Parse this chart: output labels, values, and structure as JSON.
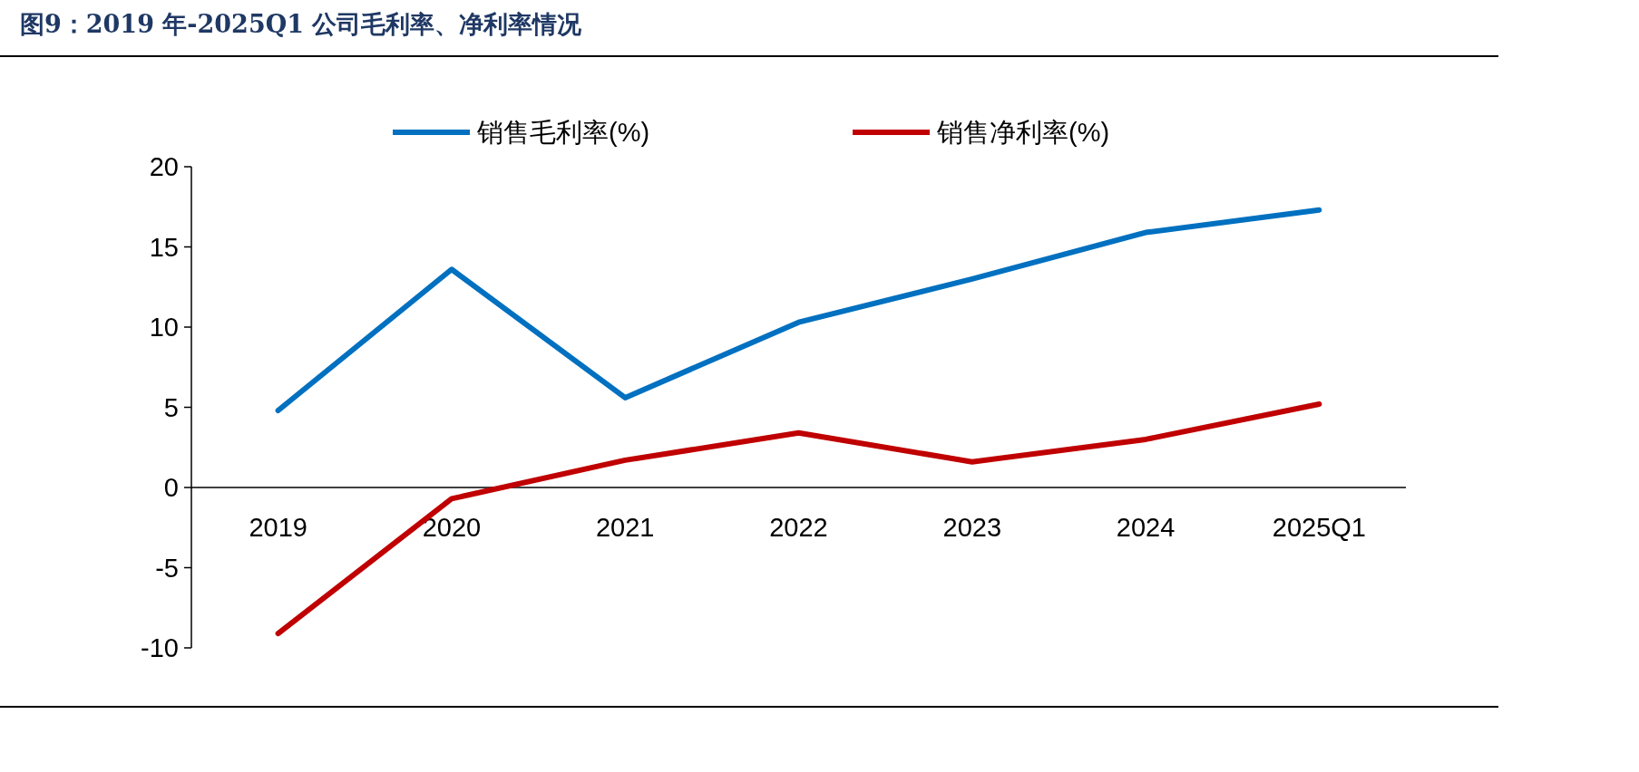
{
  "chart_data": {
    "type": "line",
    "title": "图9：2019 年-2025Q1 公司毛利率、净利率情况",
    "categories": [
      "2019",
      "2020",
      "2021",
      "2022",
      "2023",
      "2024",
      "2025Q1"
    ],
    "series": [
      {
        "name": "销售毛利率(%)",
        "color": "#0070c0",
        "values": [
          4.8,
          13.6,
          5.6,
          10.3,
          13.0,
          15.9,
          17.3
        ]
      },
      {
        "name": "销售净利率(%)",
        "color": "#c00000",
        "values": [
          -9.1,
          -0.7,
          1.7,
          3.4,
          1.6,
          3.0,
          5.2
        ]
      }
    ],
    "ylim": [
      -10,
      20
    ],
    "yticks": [
      -10,
      -5,
      0,
      5,
      10,
      15,
      20
    ],
    "legend": "top",
    "grid": false,
    "marker": "none",
    "line_style": "solid"
  }
}
